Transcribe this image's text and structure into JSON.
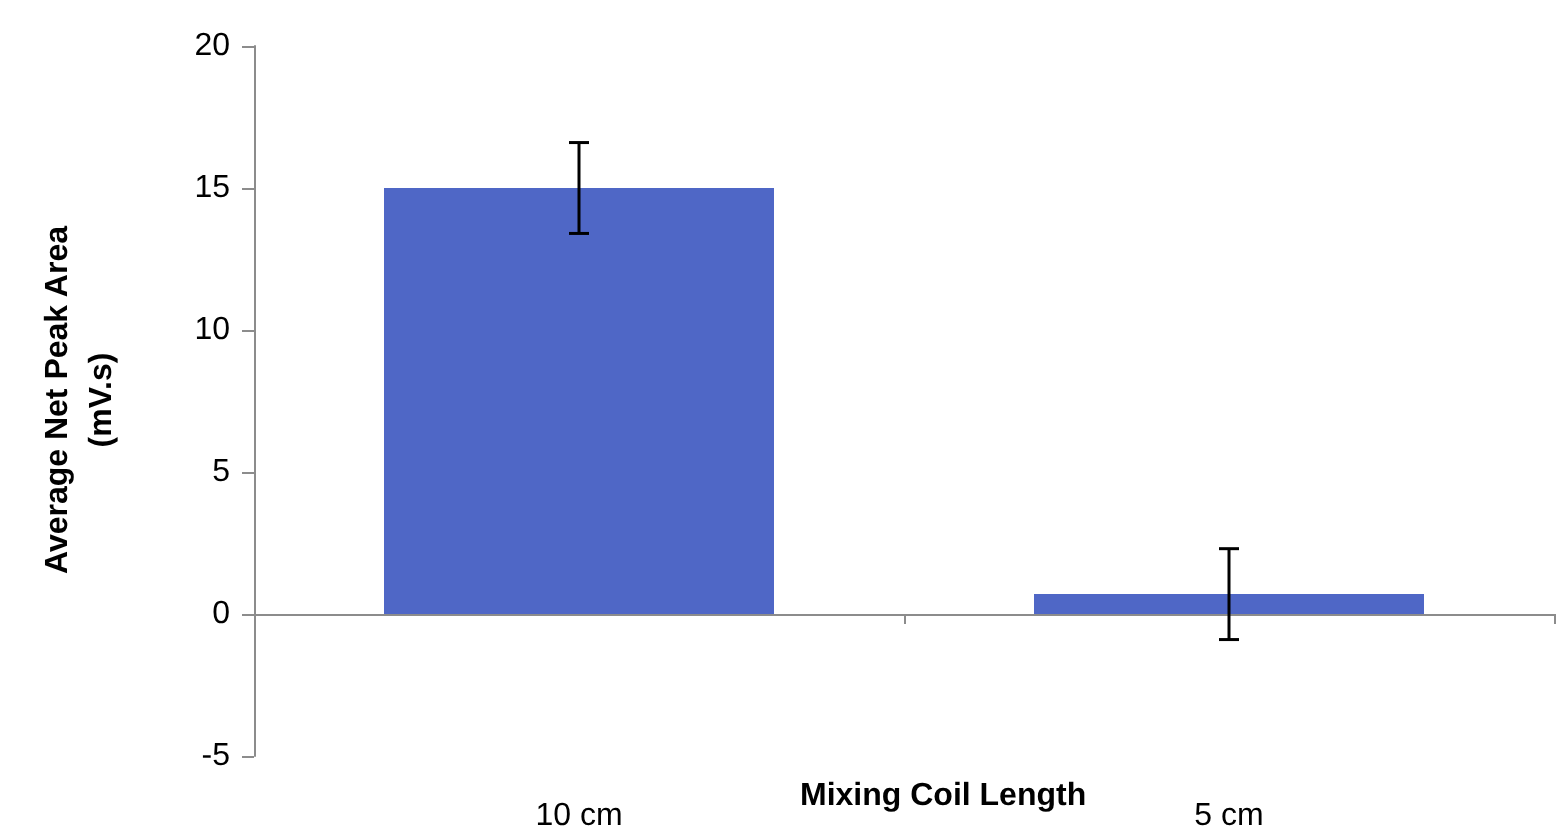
{
  "chart_data": {
    "type": "bar",
    "categories": [
      "10 cm",
      "5 cm"
    ],
    "values": [
      15,
      0.7
    ],
    "errors": [
      1.6,
      1.6
    ],
    "color": "#4f67c6",
    "ylim": [
      -5,
      20
    ],
    "yticks": [
      -5,
      0,
      5,
      10,
      15,
      20
    ],
    "xlabel": "Mixing Coil Length",
    "ylabel": "Average Net Peak Area\n(mV.s)"
  }
}
